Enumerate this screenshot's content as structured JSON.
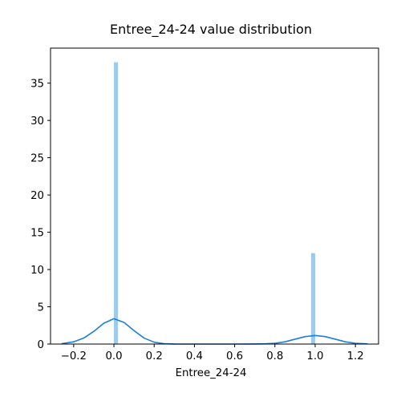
{
  "chart_data": {
    "type": "bar",
    "title": "Entree_24-24 value distribution",
    "xlabel": "Entree_24-24",
    "ylabel": "",
    "xlim": [
      -0.315,
      1.315
    ],
    "ylim": [
      0,
      39.7
    ],
    "xticks": [
      -0.2,
      0.0,
      0.2,
      0.4,
      0.6,
      0.8,
      1.0,
      1.2
    ],
    "xtick_labels": [
      "−0.2",
      "0.0",
      "0.2",
      "0.4",
      "0.6",
      "0.8",
      "1.0",
      "1.2"
    ],
    "yticks": [
      0,
      5,
      10,
      15,
      20,
      25,
      30,
      35
    ],
    "ytick_labels": [
      "0",
      "5",
      "10",
      "15",
      "20",
      "25",
      "30",
      "35"
    ],
    "grid": false,
    "histogram_bars": [
      {
        "x0": 0.0,
        "x1": 0.02,
        "value": 37.8
      },
      {
        "x0": 0.98,
        "x1": 1.0,
        "value": 12.2
      }
    ],
    "kde_curve": {
      "x": [
        -0.26,
        -0.2,
        -0.15,
        -0.1,
        -0.05,
        0.0,
        0.05,
        0.1,
        0.15,
        0.2,
        0.25,
        0.3,
        0.4,
        0.5,
        0.6,
        0.7,
        0.75,
        0.8,
        0.85,
        0.9,
        0.95,
        1.0,
        1.05,
        1.1,
        1.15,
        1.2,
        1.26
      ],
      "y": [
        0.05,
        0.3,
        0.8,
        1.7,
        2.8,
        3.4,
        2.9,
        1.8,
        0.8,
        0.25,
        0.05,
        0.01,
        0.0,
        0.0,
        0.0,
        0.01,
        0.03,
        0.1,
        0.3,
        0.65,
        1.0,
        1.15,
        1.0,
        0.65,
        0.3,
        0.1,
        0.02
      ]
    },
    "colors": {
      "bars": "#9ccaf0",
      "kde": "#1a7fe0",
      "axes": "#000000"
    }
  }
}
